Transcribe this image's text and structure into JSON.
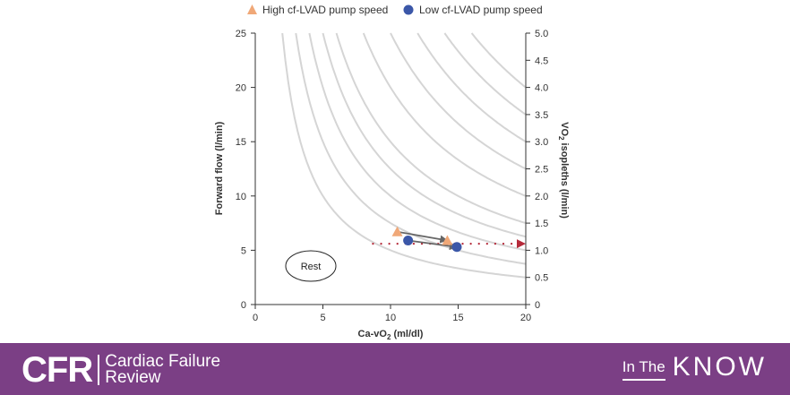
{
  "chart_data": {
    "type": "line",
    "xlabel": "Ca-vO",
    "xlabel_sub": "2",
    "xlabel_unit": " (ml/dl)",
    "ylabel": "Forward flow (l/min)",
    "y2label_pre": "VO",
    "y2label_sub": "2",
    "y2label_post": " isopleths (l/min)",
    "xlim": [
      0,
      20
    ],
    "ylim": [
      0,
      25
    ],
    "y2lim": [
      0,
      5
    ],
    "x_ticks": [
      "0",
      "5",
      "10",
      "15",
      "20"
    ],
    "y_ticks": [
      "0",
      "5",
      "10",
      "15",
      "20",
      "25"
    ],
    "y2_ticks": [
      "0",
      "0.5",
      "1.0",
      "1.5",
      "2.0",
      "2.5",
      "3.0",
      "3.5",
      "4.0",
      "4.5",
      "5.0"
    ],
    "isopleths_vo2": [
      0.5,
      0.75,
      1.0,
      1.25,
      1.5,
      2.0,
      2.5,
      3.0,
      3.5,
      4.0
    ],
    "series": [
      {
        "name": "High cf-LVAD pump speed",
        "marker": "triangle",
        "color": "#f0a878",
        "x": [
          10.5,
          14.2
        ],
        "y": [
          6.7,
          5.9
        ]
      },
      {
        "name": "Low cf-LVAD pump speed",
        "marker": "circle",
        "color": "#3b57a8",
        "x": [
          11.3,
          14.9
        ],
        "y": [
          5.9,
          5.3
        ]
      }
    ],
    "reference_line": {
      "y": 5.6,
      "x_start": 8.7,
      "x_end": 20,
      "color": "#b52a3a"
    },
    "annotations": [
      {
        "text": "Rest",
        "x": 4.0,
        "y": 3.6
      }
    ],
    "legend_position": "top"
  },
  "footer": {
    "brand_short": "CFR",
    "brand_line1": "Cardiac Failure",
    "brand_line2": "Review",
    "tag_small": "In The",
    "tag_big": "KNOW"
  },
  "colors": {
    "footer_bg": "#7b3f85",
    "isopleth": "#d5d5d5",
    "axis": "#333333"
  }
}
